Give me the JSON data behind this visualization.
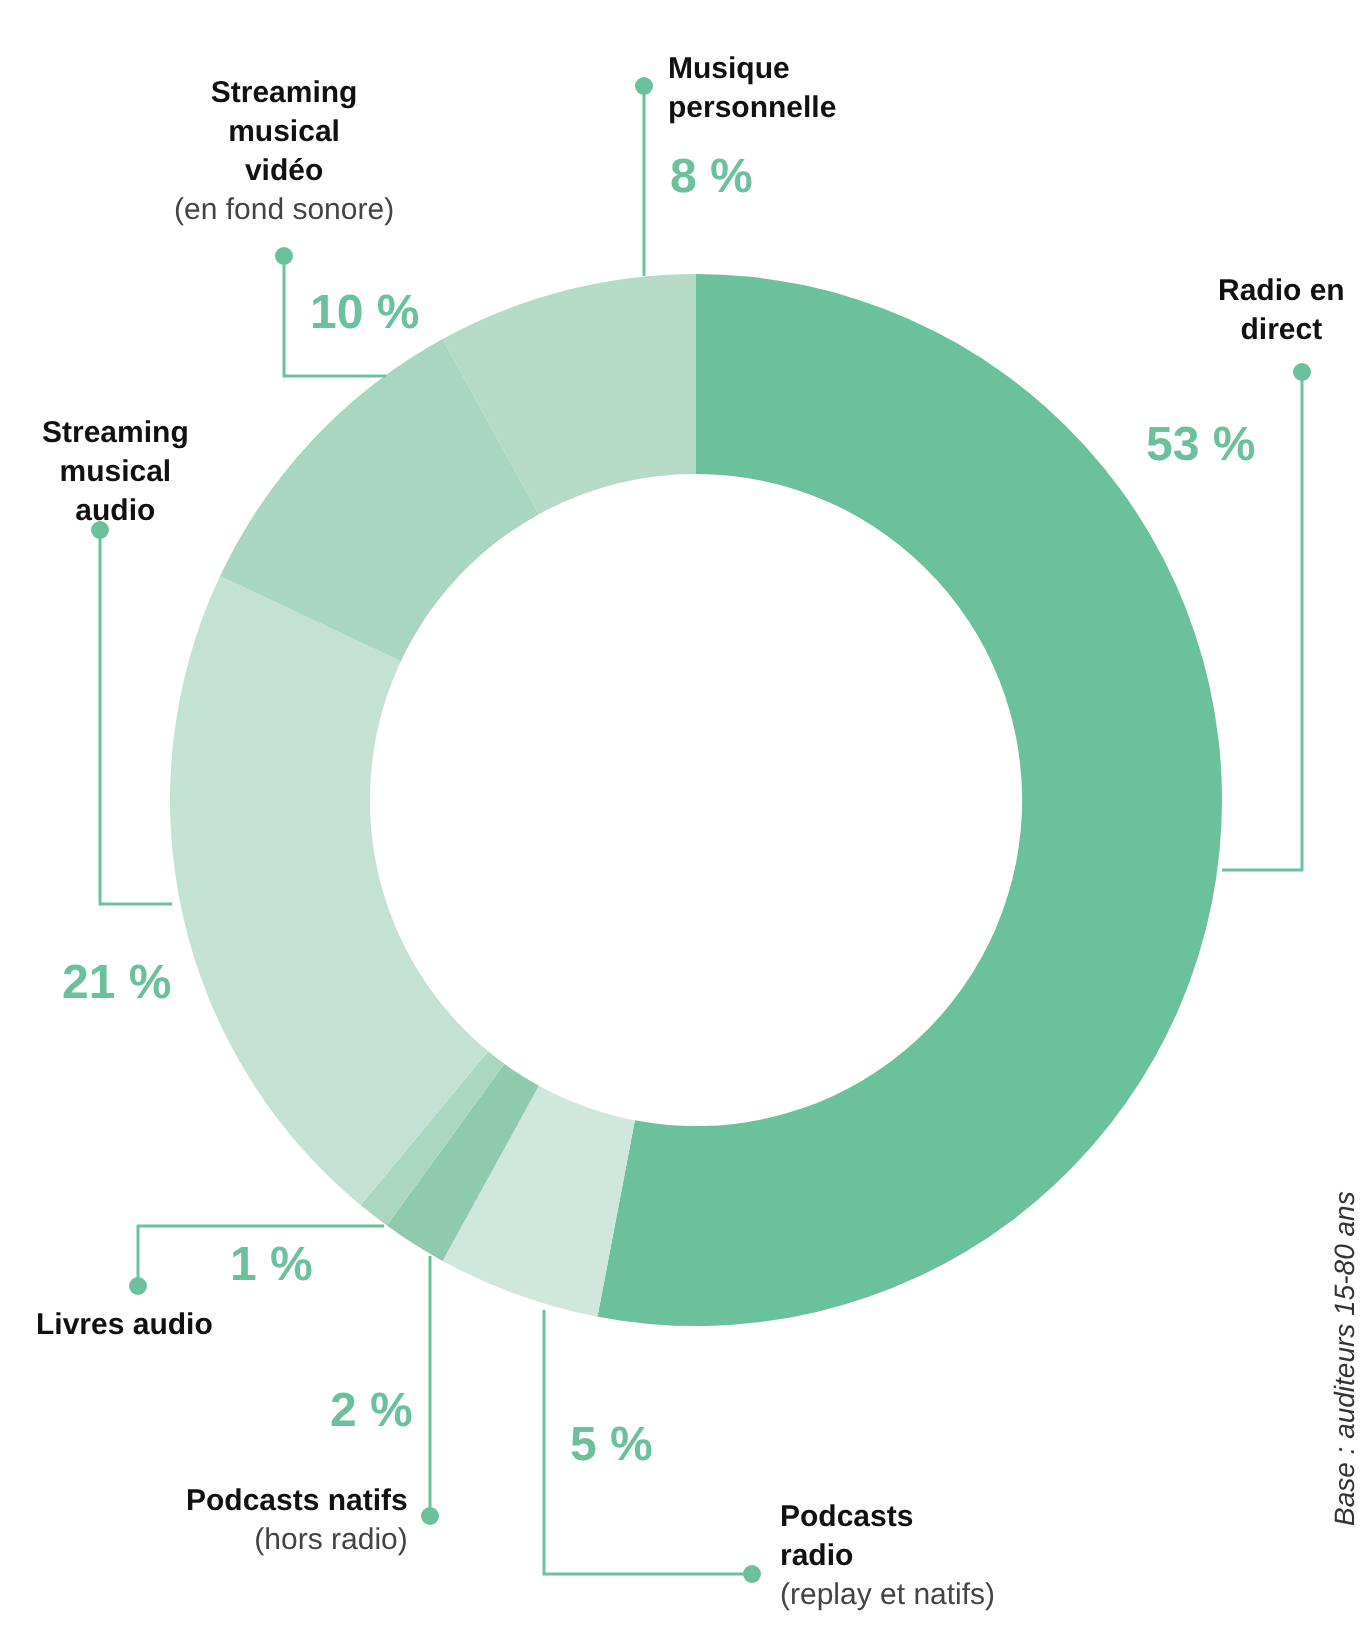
{
  "chart_data": {
    "type": "donut",
    "categories": [
      "Radio en direct",
      "Podcasts radio (replay et natifs)",
      "Podcasts natifs (hors radio)",
      "Livres audio",
      "Streaming musical audio",
      "Streaming musical vidéo (en fond sonore)",
      "Musique personnelle"
    ],
    "values": [
      53,
      5,
      2,
      1,
      21,
      10,
      8
    ],
    "colors": [
      "#6bc19c",
      "#d0e7db",
      "#8ecaad",
      "#abd7c0",
      "#c4e2d3",
      "#a9d6c0",
      "#b5dbc7"
    ],
    "value_labels": [
      "53 %",
      "5 %",
      "2 %",
      "1 %",
      "21 %",
      "10 %",
      "8 %"
    ],
    "annotations": [
      "Base : auditeurs 15-80 ans"
    ],
    "legend": false
  }
}
